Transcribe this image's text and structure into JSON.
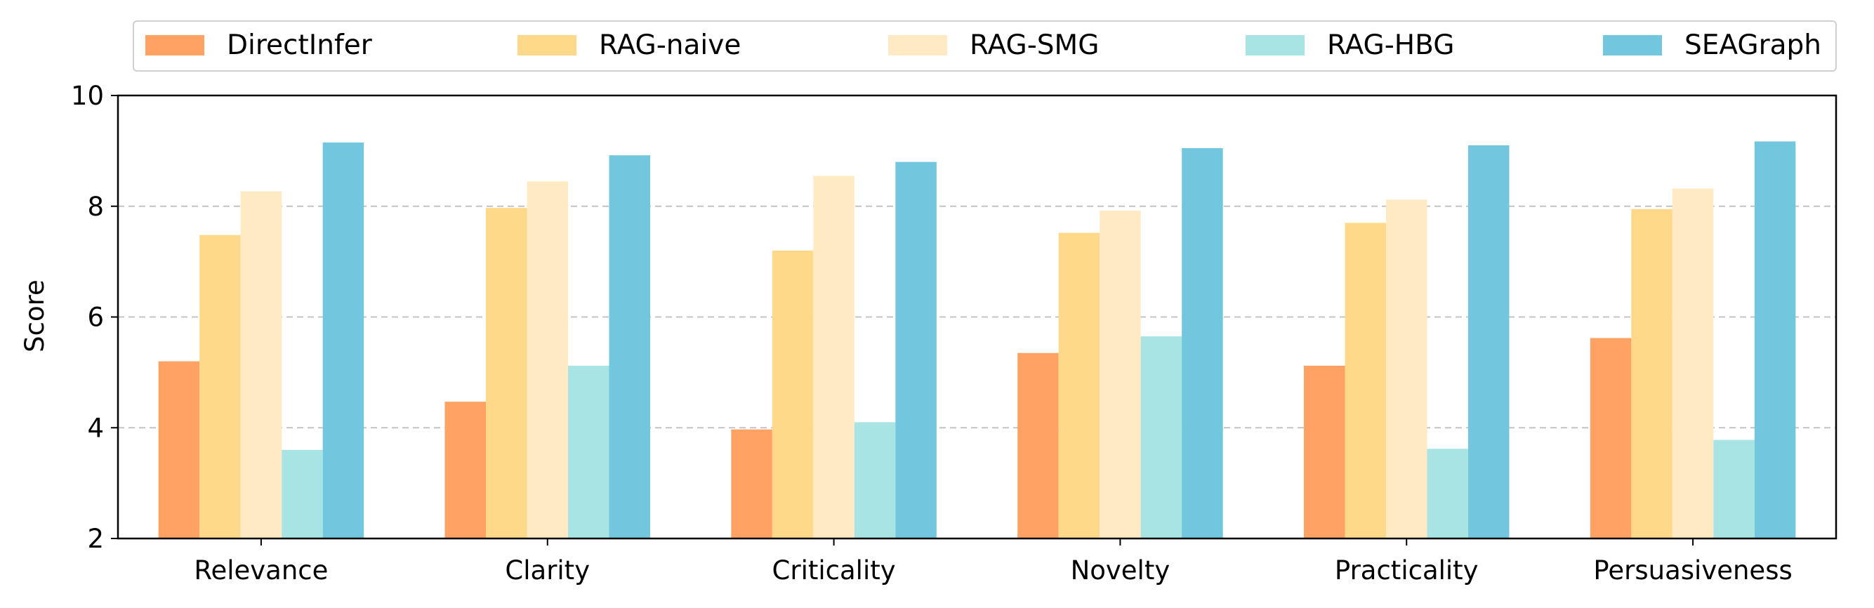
{
  "chart_data": {
    "type": "bar",
    "ylabel": "Score",
    "ylim": [
      2,
      10
    ],
    "yticks": [
      2,
      4,
      6,
      8,
      10
    ],
    "grid": "horizontal dashed at 4, 6, 8",
    "legend_position": "top",
    "categories": [
      "Relevance",
      "Clarity",
      "Criticality",
      "Novelty",
      "Practicality",
      "Persuasiveness"
    ],
    "series": [
      {
        "name": "DirectInfer",
        "color": "#FFA263",
        "values": [
          5.2,
          4.47,
          3.97,
          5.35,
          5.12,
          5.62
        ]
      },
      {
        "name": "RAG-naive",
        "color": "#FFD98A",
        "values": [
          7.48,
          7.97,
          7.2,
          7.52,
          7.7,
          7.95
        ]
      },
      {
        "name": "RAG-SMG",
        "color": "#FFEAC3",
        "values": [
          8.27,
          8.45,
          8.55,
          7.92,
          8.12,
          8.32
        ]
      },
      {
        "name": "RAG-HBG",
        "color": "#A8E4E4",
        "values": [
          3.6,
          5.12,
          4.1,
          5.65,
          3.62,
          3.78
        ]
      },
      {
        "name": "SEAGraph",
        "color": "#72C6DD",
        "values": [
          9.15,
          8.92,
          8.8,
          9.05,
          9.1,
          9.17
        ]
      }
    ]
  }
}
